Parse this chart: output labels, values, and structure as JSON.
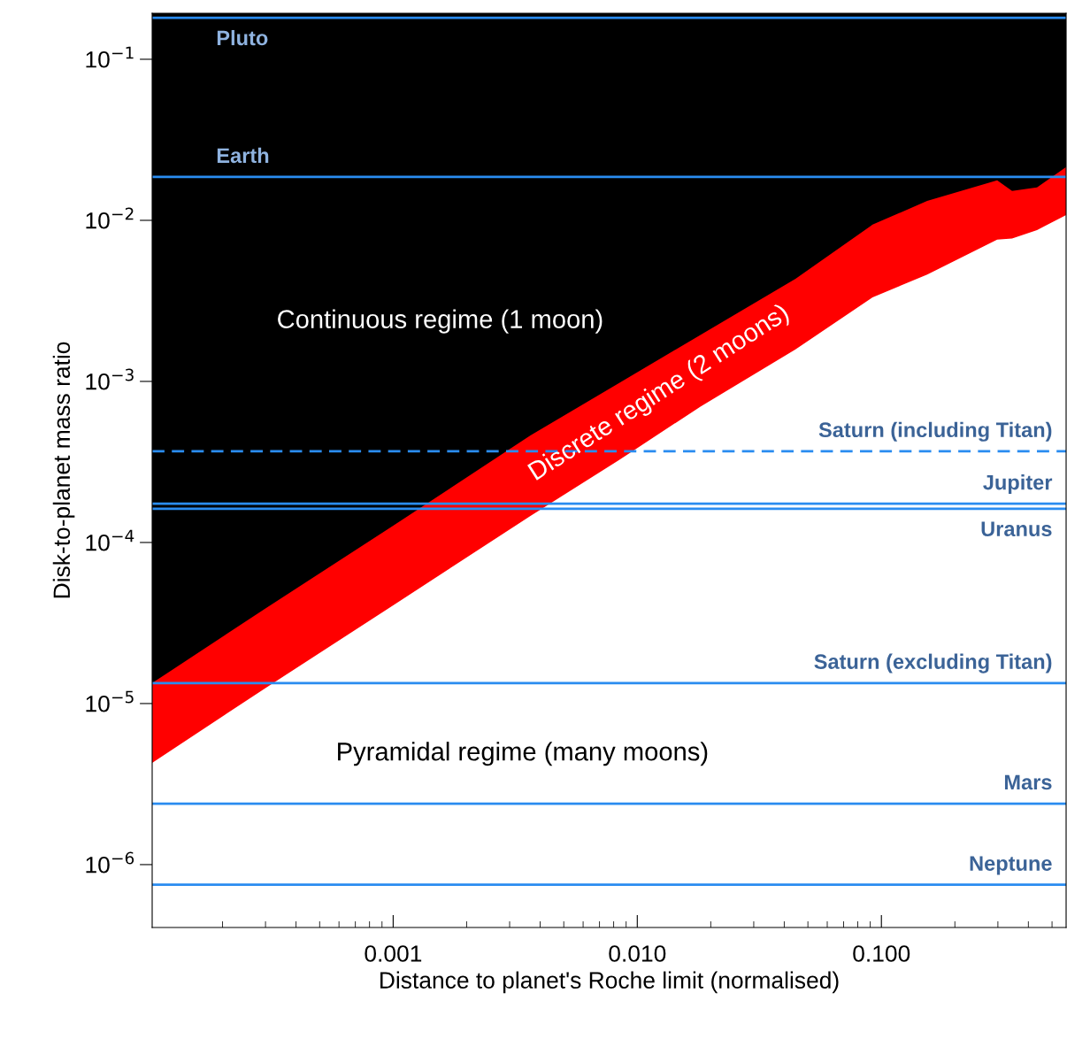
{
  "chart_data": {
    "type": "area",
    "xlabel": "Distance to planet's Roche limit (normalised)",
    "ylabel": "Disk-to-planet mass ratio",
    "log": "xy",
    "xlim": [
      0.000103,
      0.571
    ],
    "ylim": [
      4.07e-07,
      0.193
    ],
    "xticks": [
      {
        "value": 0.001,
        "label": "0.001"
      },
      {
        "value": 0.01,
        "label": "0.010"
      },
      {
        "value": 0.1,
        "label": "0.100"
      }
    ],
    "yticks": [
      {
        "value": 1e-06,
        "label": "10$^{−6}$"
      },
      {
        "value": 1e-05,
        "label": "10$^{−5}$"
      },
      {
        "value": 0.0001,
        "label": "10$^{−4}$"
      },
      {
        "value": 0.001,
        "label": "10$^{−3}$"
      },
      {
        "value": 0.01,
        "label": "10$^{−2}$"
      },
      {
        "value": 0.1,
        "label": "10$^{−1}$"
      }
    ],
    "x": [
      0.000103,
      0.000298,
      0.001,
      0.00365,
      0.0084,
      0.0182,
      0.0445,
      0.092,
      0.154,
      0.298,
      0.343,
      0.434,
      0.571
    ],
    "series": [
      {
        "color": "#ff0000",
        "values": [
          1.34e-05,
          3.87e-05,
          0.000127,
          0.000462,
          0.000975,
          0.00195,
          0.00434,
          0.0094,
          0.0132,
          0.0177,
          0.0152,
          0.016,
          0.0214
        ]
      },
      {
        "color": "#ffffff",
        "values": [
          4.28e-06,
          1.24e-05,
          4.07e-05,
          0.000146,
          0.000324,
          0.0007,
          0.00158,
          0.00333,
          0.0046,
          0.0076,
          0.0077,
          0.0087,
          0.0108
        ]
      }
    ],
    "bands": [
      {
        "axis": "y",
        "from": 4.07e-07,
        "to": 0.193,
        "color": "#000000"
      }
    ],
    "ref_lines": [
      {
        "axis": "y",
        "value": 0.181,
        "label": "Pluto",
        "color": "#2a8cf0"
      },
      {
        "axis": "y",
        "value": 0.0186,
        "label": "Earth",
        "color": "#2a8cf0"
      },
      {
        "axis": "y",
        "value": 0.000368,
        "label": "Saturn (including Titan)",
        "color": "#2a8cf0",
        "line_style": "dashed"
      },
      {
        "axis": "y",
        "value": 0.000174,
        "label": "Jupiter",
        "color": "#2a8cf0"
      },
      {
        "axis": "y",
        "value": 0.000162,
        "label": "Uranus",
        "color": "#2a8cf0"
      },
      {
        "axis": "y",
        "value": 1.34e-05,
        "label": "Saturn (excluding Titan)",
        "color": "#2a8cf0"
      },
      {
        "axis": "y",
        "value": 2.39e-06,
        "label": "Mars",
        "color": "#2a8cf0"
      },
      {
        "axis": "y",
        "value": 7.5e-07,
        "label": "Neptune",
        "color": "#2a8cf0"
      }
    ],
    "annotations": [
      "Continuous regime (1 moon)",
      "Discrete regime (2 moons)",
      "Pyramidal regime (many moons)"
    ],
    "grid": false,
    "legend": false
  }
}
